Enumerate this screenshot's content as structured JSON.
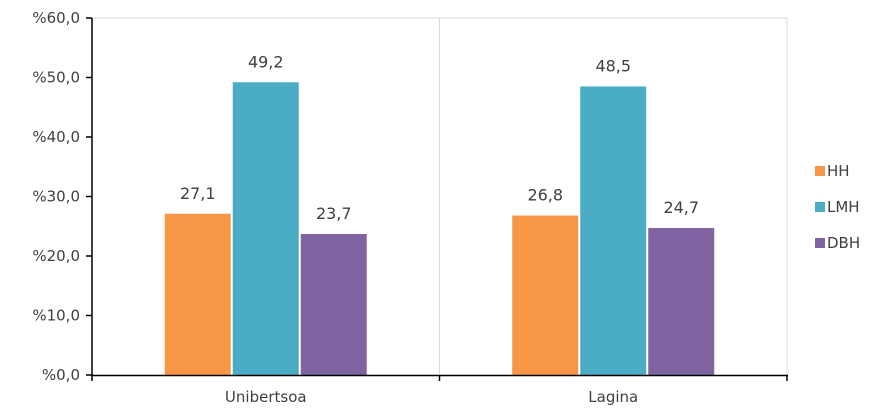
{
  "chart_data": {
    "type": "bar",
    "categories": [
      "Unibertsoa",
      "Lagina"
    ],
    "series": [
      {
        "name": "HH",
        "values": [
          27.1,
          26.8
        ],
        "labels": [
          "27,1",
          "26,8"
        ],
        "color": "#F79646"
      },
      {
        "name": "LMH",
        "values": [
          49.2,
          48.5
        ],
        "labels": [
          "49,2",
          "48,5"
        ],
        "color": "#4BACC6"
      },
      {
        "name": "DBH",
        "values": [
          23.7,
          24.7
        ],
        "labels": [
          "23,7",
          "24,7"
        ],
        "color": "#8064A2"
      }
    ],
    "yticks": [
      0,
      10,
      20,
      30,
      40,
      50,
      60
    ],
    "ytick_labels": [
      "%0,0",
      "%10,0",
      "%20,0",
      "%30,0",
      "%40,0",
      "%50,0",
      "%60,0"
    ],
    "ylim": [
      0,
      60
    ],
    "title": "",
    "xlabel": "",
    "ylabel": "",
    "grid": "vertical category separators",
    "legend": "right"
  }
}
